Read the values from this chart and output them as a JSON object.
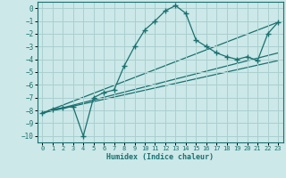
{
  "xlabel": "Humidex (Indice chaleur)",
  "bg_color": "#cce8e8",
  "grid_color": "#aacfcf",
  "line_color": "#1a7070",
  "marker": "+",
  "xlim": [
    -0.5,
    23.5
  ],
  "ylim": [
    -10.5,
    0.5
  ],
  "yticks": [
    0,
    -1,
    -2,
    -3,
    -4,
    -5,
    -6,
    -7,
    -8,
    -9,
    -10
  ],
  "xticks": [
    0,
    1,
    2,
    3,
    4,
    5,
    6,
    7,
    8,
    9,
    10,
    11,
    12,
    13,
    14,
    15,
    16,
    17,
    18,
    19,
    20,
    21,
    22,
    23
  ],
  "series": [
    {
      "x": [
        0,
        1,
        2,
        3,
        4,
        5,
        6,
        7,
        8,
        9,
        10,
        11,
        12,
        13,
        14,
        15,
        16,
        17,
        18,
        19,
        20,
        21,
        22,
        23
      ],
      "y": [
        -8.2,
        -7.9,
        -7.8,
        -7.7,
        -10.0,
        -7.0,
        -6.6,
        -6.4,
        -4.5,
        -3.0,
        -1.7,
        -1.0,
        -0.2,
        0.2,
        -0.4,
        -2.5,
        -3.0,
        -3.5,
        -3.8,
        -4.0,
        -3.8,
        -4.1,
        -2.0,
        -1.1
      ]
    },
    {
      "x": [
        0,
        23
      ],
      "y": [
        -8.2,
        -1.1
      ]
    },
    {
      "x": [
        0,
        23
      ],
      "y": [
        -8.2,
        -4.1
      ]
    },
    {
      "x": [
        0,
        23
      ],
      "y": [
        -8.2,
        -3.5
      ]
    }
  ]
}
